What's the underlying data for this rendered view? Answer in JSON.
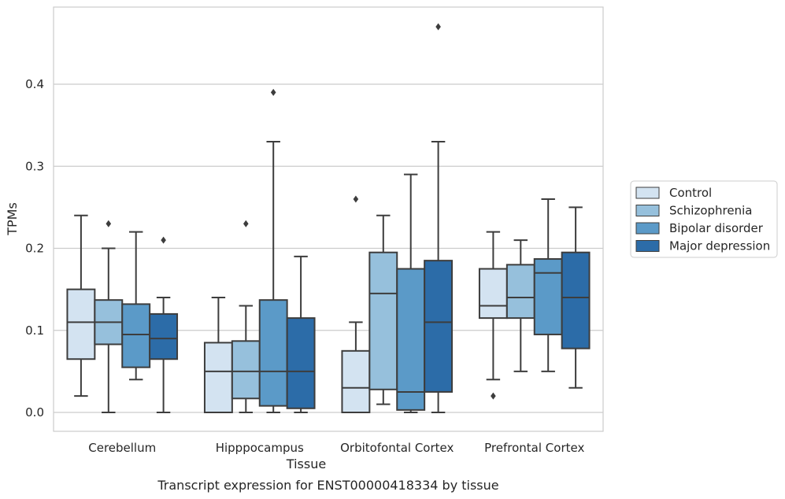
{
  "chart_data": {
    "type": "box",
    "caption": "Transcript expression for ENST00000418334 by tissue",
    "xlabel": "Tissue",
    "ylabel": "TPMs",
    "ylim": [
      -0.023,
      0.495
    ],
    "yticks": [
      "0.0",
      "0.1",
      "0.2",
      "0.3",
      "0.4"
    ],
    "grid": "horizontal",
    "legend_position": "right",
    "categories": [
      "Cerebellum",
      "Hipppocampus",
      "Orbitofontal Cortex",
      "Prefrontal Cortex"
    ],
    "series": [
      {
        "name": "Control",
        "color": "#d3e3f1",
        "boxes": [
          {
            "whislo": 0.02,
            "q1": 0.065,
            "med": 0.11,
            "q3": 0.15,
            "whishi": 0.24,
            "fliers": []
          },
          {
            "whislo": 0.0,
            "q1": 0.0,
            "med": 0.05,
            "q3": 0.085,
            "whishi": 0.14,
            "fliers": []
          },
          {
            "whislo": 0.0,
            "q1": 0.0,
            "med": 0.03,
            "q3": 0.075,
            "whishi": 0.11,
            "fliers": [
              0.26
            ]
          },
          {
            "whislo": 0.04,
            "q1": 0.115,
            "med": 0.13,
            "q3": 0.175,
            "whishi": 0.22,
            "fliers": [
              0.02
            ]
          }
        ]
      },
      {
        "name": "Schizophrenia",
        "color": "#96c0dc",
        "boxes": [
          {
            "whislo": 0.0,
            "q1": 0.083,
            "med": 0.11,
            "q3": 0.137,
            "whishi": 0.2,
            "fliers": [
              0.23
            ]
          },
          {
            "whislo": 0.0,
            "q1": 0.017,
            "med": 0.05,
            "q3": 0.087,
            "whishi": 0.13,
            "fliers": [
              0.23
            ]
          },
          {
            "whislo": 0.01,
            "q1": 0.028,
            "med": 0.145,
            "q3": 0.195,
            "whishi": 0.24,
            "fliers": []
          },
          {
            "whislo": 0.05,
            "q1": 0.115,
            "med": 0.14,
            "q3": 0.18,
            "whishi": 0.21,
            "fliers": []
          }
        ]
      },
      {
        "name": "Bipolar disorder",
        "color": "#5b9ac8",
        "boxes": [
          {
            "whislo": 0.04,
            "q1": 0.055,
            "med": 0.095,
            "q3": 0.132,
            "whishi": 0.22,
            "fliers": []
          },
          {
            "whislo": 0.0,
            "q1": 0.008,
            "med": 0.05,
            "q3": 0.137,
            "whishi": 0.33,
            "fliers": [
              0.39
            ]
          },
          {
            "whislo": 0.0,
            "q1": 0.003,
            "med": 0.025,
            "q3": 0.175,
            "whishi": 0.29,
            "fliers": []
          },
          {
            "whislo": 0.05,
            "q1": 0.095,
            "med": 0.17,
            "q3": 0.187,
            "whishi": 0.26,
            "fliers": []
          }
        ]
      },
      {
        "name": "Major depression",
        "color": "#2c6ca8",
        "boxes": [
          {
            "whislo": 0.0,
            "q1": 0.065,
            "med": 0.09,
            "q3": 0.12,
            "whishi": 0.14,
            "fliers": [
              0.21
            ]
          },
          {
            "whislo": 0.0,
            "q1": 0.005,
            "med": 0.05,
            "q3": 0.115,
            "whishi": 0.19,
            "fliers": []
          },
          {
            "whislo": 0.0,
            "q1": 0.025,
            "med": 0.11,
            "q3": 0.185,
            "whishi": 0.33,
            "fliers": [
              0.47
            ]
          },
          {
            "whislo": 0.03,
            "q1": 0.078,
            "med": 0.14,
            "q3": 0.195,
            "whishi": 0.25,
            "fliers": []
          }
        ]
      }
    ]
  }
}
